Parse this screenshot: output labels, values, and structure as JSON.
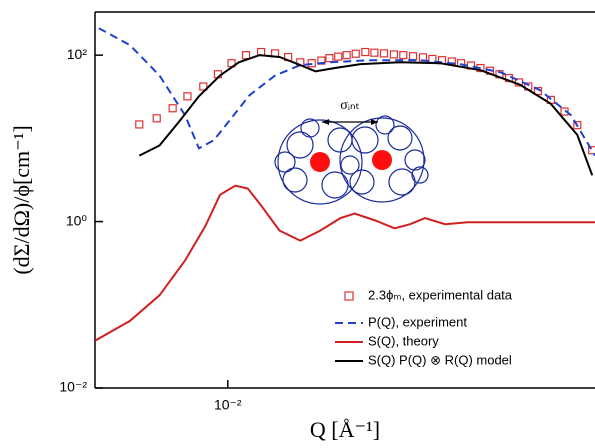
{
  "chart_data": {
    "type": "line",
    "xlabel": "Q [Å⁻¹]",
    "ylabel": "(dΣ/dΩ)/ϕ[cm⁻¹]",
    "annotation": "σᵢₙₜ",
    "xscale": "log",
    "yscale": "log",
    "xlim": [
      0.005,
      0.068
    ],
    "ylim": [
      0.01,
      330
    ],
    "xticks": [
      {
        "value": 0.01,
        "label": "10⁻²"
      }
    ],
    "yticks": [
      {
        "value": 0.01,
        "label": "10⁻²"
      },
      {
        "value": 1,
        "label": "10⁰"
      },
      {
        "value": 100,
        "label": "10²"
      }
    ],
    "legend": "lower right",
    "series": [
      {
        "name": "2.3ϕₘ, experimental data",
        "color": "#e03030",
        "marker": "square",
        "line": "none",
        "x": [
          0.0063,
          0.0069,
          0.0075,
          0.0081,
          0.0088,
          0.0095,
          0.0102,
          0.011,
          0.0119,
          0.0128,
          0.0137,
          0.0146,
          0.0155,
          0.0163,
          0.017,
          0.0178,
          0.0186,
          0.0195,
          0.0205,
          0.0215,
          0.0226,
          0.0238,
          0.025,
          0.0263,
          0.0277,
          0.0291,
          0.0306,
          0.0322,
          0.0338,
          0.0356,
          0.0374,
          0.0393,
          0.0413,
          0.0434,
          0.0457,
          0.048,
          0.0505,
          0.054,
          0.058,
          0.062,
          0.067
        ],
        "values": [
          14.7,
          17.4,
          23,
          32,
          42,
          59,
          80,
          100,
          109,
          105,
          95,
          82,
          80,
          86,
          92,
          96,
          100,
          104,
          109,
          107,
          105,
          102,
          100,
          97,
          94,
          90,
          87,
          84,
          80,
          75,
          70,
          65,
          59,
          53,
          47,
          42,
          37,
          29,
          21,
          14.4,
          7.2
        ]
      },
      {
        "name": "P(Q), experiment",
        "color": "#2040d0",
        "marker": "none",
        "line": "dashed",
        "x": [
          0.0051,
          0.006,
          0.007,
          0.008,
          0.0086,
          0.0093,
          0.0101,
          0.0112,
          0.0128,
          0.0146,
          0.017,
          0.021,
          0.0273,
          0.0336,
          0.0416,
          0.051,
          0.06,
          0.068
        ],
        "values": [
          211,
          132,
          57,
          19,
          7.6,
          9.5,
          16.5,
          33,
          57,
          76,
          82,
          87,
          87,
          78,
          62,
          38,
          19,
          6.2
        ]
      },
      {
        "name": "S(Q), theory",
        "color": "#d02020",
        "marker": "none",
        "line": "solid",
        "x": [
          0.005,
          0.006,
          0.007,
          0.008,
          0.0089,
          0.0096,
          0.0104,
          0.0111,
          0.0119,
          0.0131,
          0.0146,
          0.0162,
          0.018,
          0.0194,
          0.0216,
          0.0239,
          0.0259,
          0.028,
          0.0311,
          0.035,
          0.0416,
          0.051,
          0.068
        ],
        "values": [
          0.037,
          0.064,
          0.13,
          0.34,
          0.89,
          2.1,
          2.7,
          2.5,
          1.56,
          0.78,
          0.59,
          0.78,
          1.1,
          1.25,
          1.03,
          0.83,
          0.93,
          1.1,
          0.93,
          0.98,
          0.98,
          0.98,
          0.98
        ]
      },
      {
        "name": "S(Q) P(Q) ⊗ R(Q) model",
        "color": "#000000",
        "marker": "none",
        "line": "solid",
        "x": [
          0.0063,
          0.007,
          0.0078,
          0.0086,
          0.0096,
          0.0106,
          0.0118,
          0.0131,
          0.0146,
          0.0158,
          0.0175,
          0.02,
          0.0246,
          0.0303,
          0.0374,
          0.046,
          0.054,
          0.062,
          0.067
        ],
        "values": [
          6.2,
          8.2,
          16.5,
          32,
          57,
          82,
          100,
          95,
          76,
          64,
          70,
          78,
          82,
          80,
          66,
          44,
          26,
          11,
          3.6
        ]
      }
    ]
  }
}
